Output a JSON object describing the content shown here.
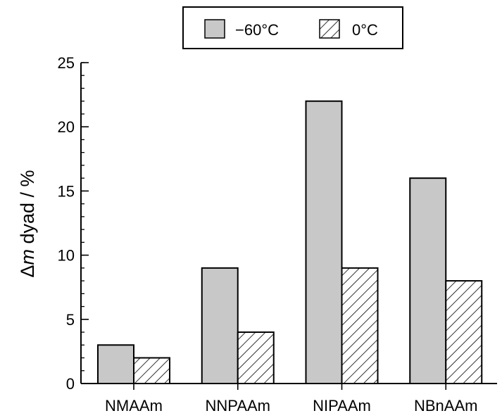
{
  "chart_data": {
    "type": "bar",
    "categories": [
      "NMAAm",
      "NNPAAm",
      "NIPAAm",
      "NBnAAm"
    ],
    "series": [
      {
        "name": "−60°C",
        "values": [
          3,
          9,
          22,
          16
        ],
        "fill": "#c8c8c8",
        "pattern": "solid"
      },
      {
        "name": "0°C",
        "values": [
          2,
          4,
          9,
          8
        ],
        "fill": "#ffffff",
        "pattern": "diagonal-hatch"
      }
    ],
    "ylabel_symbol": "Δ",
    "ylabel_italic": "m",
    "ylabel_rest": " dyad / %",
    "ylim": [
      0,
      25
    ],
    "yticks": [
      0,
      5,
      10,
      15,
      20,
      25
    ],
    "yminor_step": 1,
    "grid": false,
    "legend_position": "top"
  }
}
